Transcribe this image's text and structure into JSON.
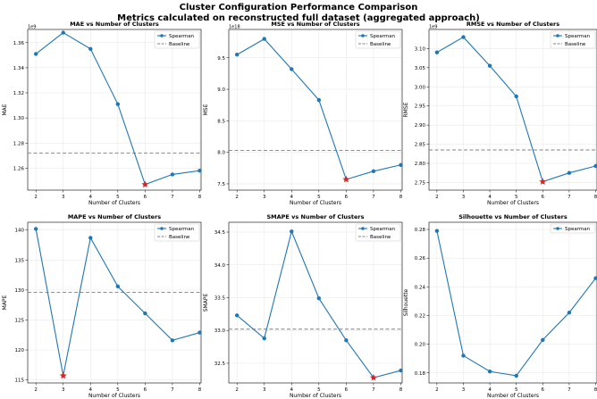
{
  "title": "Cluster Configuration Performance Comparison",
  "subtitle": "Metrics calculated on reconstructed full dataset (aggregated approach)",
  "colors": {
    "series": "#1f77b4",
    "baseline": "#808080",
    "best": "#d62728"
  },
  "chart_data": [
    {
      "type": "line",
      "title": "MAE vs Number of Clusters",
      "xlabel": "Number of Clusters",
      "ylabel": "MAE",
      "sci_label": "1e9",
      "x": [
        2,
        3,
        4,
        5,
        6,
        7,
        8
      ],
      "xlim": [
        1.7,
        8.05
      ],
      "ylim": [
        1.2425,
        1.3705
      ],
      "yticks": [
        1.26,
        1.28,
        1.3,
        1.32,
        1.34,
        1.36
      ],
      "ytick_labels": [
        "1.26",
        "1.28",
        "1.30",
        "1.32",
        "1.34",
        "1.36"
      ],
      "series": [
        {
          "name": "Spearman",
          "values": [
            1.351,
            1.368,
            1.355,
            1.311,
            1.247,
            1.255,
            1.258
          ]
        }
      ],
      "baseline": {
        "name": "Baseline",
        "value": 1.272
      },
      "best": {
        "x": 6,
        "y": 1.247
      },
      "grid": true,
      "legend": "top-right"
    },
    {
      "type": "line",
      "title": "MSE vs Number of Clusters",
      "xlabel": "Number of Clusters",
      "ylabel": "MSE",
      "sci_label": "1e18",
      "x": [
        2,
        3,
        4,
        5,
        6,
        7,
        8
      ],
      "xlim": [
        1.7,
        8.05
      ],
      "ylim": [
        7.4,
        9.95
      ],
      "yticks": [
        7.5,
        8.0,
        8.5,
        9.0,
        9.5
      ],
      "ytick_labels": [
        "7.5",
        "8.0",
        "8.5",
        "9.0",
        "9.5"
      ],
      "series": [
        {
          "name": "Spearman",
          "values": [
            9.55,
            9.8,
            9.32,
            8.83,
            7.57,
            7.7,
            7.8
          ]
        }
      ],
      "baseline": {
        "name": "Baseline",
        "value": 8.03
      },
      "best": {
        "x": 6,
        "y": 7.57
      },
      "grid": true,
      "legend": "top-right"
    },
    {
      "type": "line",
      "title": "RMSE vs Number of Clusters",
      "xlabel": "Number of Clusters",
      "ylabel": "RMSE",
      "sci_label": "1e9",
      "x": [
        2,
        3,
        4,
        5,
        6,
        7,
        8
      ],
      "xlim": [
        1.7,
        8.05
      ],
      "ylim": [
        2.73,
        3.15
      ],
      "yticks": [
        2.75,
        2.8,
        2.85,
        2.9,
        2.95,
        3.0,
        3.05,
        3.1
      ],
      "ytick_labels": [
        "2.75",
        "2.80",
        "2.85",
        "2.90",
        "2.95",
        "3.00",
        "3.05",
        "3.10"
      ],
      "series": [
        {
          "name": "Spearman",
          "values": [
            3.09,
            3.13,
            3.055,
            2.975,
            2.752,
            2.775,
            2.793
          ]
        }
      ],
      "baseline": {
        "name": "Baseline",
        "value": 2.835
      },
      "best": {
        "x": 6,
        "y": 2.752
      },
      "grid": true,
      "legend": "top-right"
    },
    {
      "type": "line",
      "title": "MAPE vs Number of Clusters",
      "xlabel": "Number of Clusters",
      "ylabel": "MAPE",
      "sci_label": "",
      "x": [
        2,
        3,
        4,
        5,
        6,
        7,
        8
      ],
      "xlim": [
        1.7,
        8.05
      ],
      "ylim": [
        114.5,
        141.3
      ],
      "yticks": [
        115,
        120,
        125,
        130,
        135,
        140
      ],
      "ytick_labels": [
        "115",
        "120",
        "125",
        "130",
        "135",
        "140"
      ],
      "series": [
        {
          "name": "Spearman",
          "values": [
            140.2,
            115.7,
            138.7,
            130.6,
            126.1,
            121.6,
            122.9
          ]
        }
      ],
      "baseline": {
        "name": "Baseline",
        "value": 129.6
      },
      "best": {
        "x": 3,
        "y": 115.7
      },
      "grid": true,
      "legend": "top-right"
    },
    {
      "type": "line",
      "title": "SMAPE vs Number of Clusters",
      "xlabel": "Number of Clusters",
      "ylabel": "SMAPE",
      "sci_label": "",
      "x": [
        2,
        3,
        4,
        5,
        6,
        7,
        8
      ],
      "xlim": [
        1.7,
        8.05
      ],
      "ylim": [
        32.2,
        34.65
      ],
      "yticks": [
        32.5,
        33.0,
        33.5,
        34.0,
        34.5
      ],
      "ytick_labels": [
        "32.5",
        "33.0",
        "33.5",
        "34.0",
        "34.5"
      ],
      "series": [
        {
          "name": "Spearman",
          "values": [
            33.23,
            32.88,
            34.51,
            33.49,
            32.85,
            32.28,
            32.39
          ]
        }
      ],
      "baseline": {
        "name": "Baseline",
        "value": 33.02
      },
      "best": {
        "x": 7,
        "y": 32.28
      },
      "grid": true,
      "legend": "top-right"
    },
    {
      "type": "line",
      "title": "Silhouette vs Number of Clusters",
      "xlabel": "Number of Clusters",
      "ylabel": "Silhouette",
      "sci_label": "",
      "x": [
        2,
        3,
        4,
        5,
        6,
        7,
        8
      ],
      "xlim": [
        1.7,
        8.05
      ],
      "ylim": [
        0.173,
        0.285
      ],
      "yticks": [
        0.18,
        0.2,
        0.22,
        0.24,
        0.26,
        0.28
      ],
      "ytick_labels": [
        "0.18",
        "0.20",
        "0.22",
        "0.24",
        "0.26",
        "0.28"
      ],
      "series": [
        {
          "name": "Spearman",
          "values": [
            0.279,
            0.192,
            0.181,
            0.178,
            0.203,
            0.222,
            0.246
          ]
        }
      ],
      "baseline": null,
      "best": null,
      "grid": true,
      "legend": "top-right"
    }
  ]
}
